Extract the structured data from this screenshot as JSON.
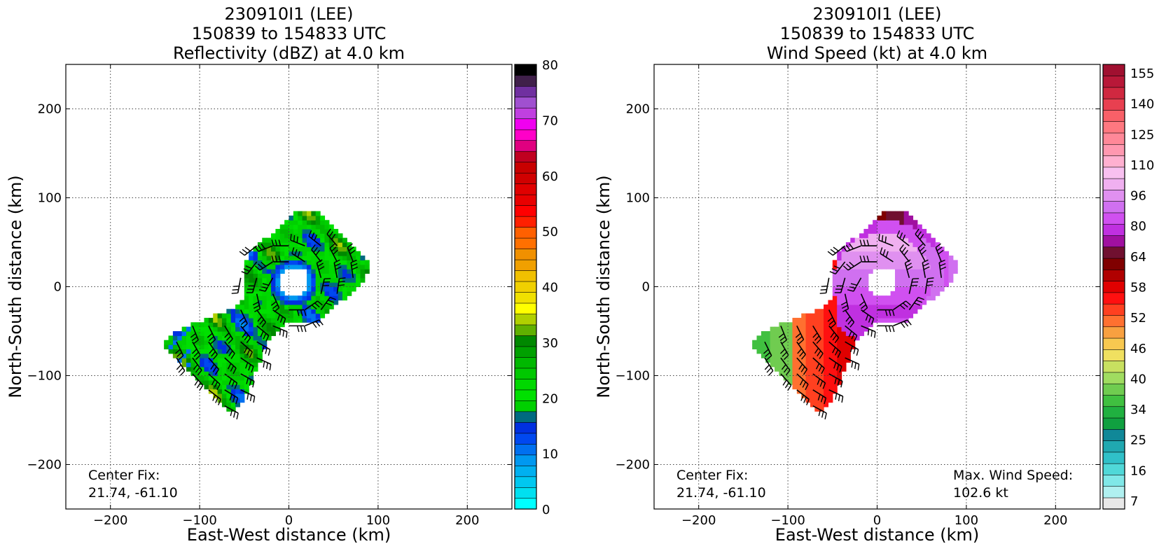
{
  "chart_data": [
    {
      "type": "heatmap",
      "title_lines": [
        "230910I1 (LEE)",
        "150839 to 154833 UTC",
        "Reflectivity (dBZ) at 4.0 km"
      ],
      "xlabel": "East-West distance (km)",
      "ylabel": "North-South distance (km)",
      "xlim": [
        -250,
        250
      ],
      "ylim": [
        -250,
        250
      ],
      "xticks": [
        -200,
        -100,
        0,
        100,
        200
      ],
      "yticks": [
        -200,
        -100,
        0,
        100,
        200
      ],
      "grid": true,
      "annotations": [
        {
          "lines": [
            "Center Fix:",
            "21.74, -61.10"
          ],
          "position": "bottom-left"
        }
      ],
      "colorbar": {
        "min": 0,
        "max": 80,
        "tick_values": [
          0,
          10,
          20,
          30,
          40,
          50,
          60,
          70,
          80
        ],
        "colors": [
          "#00ffff",
          "#00e0f0",
          "#00c8f0",
          "#00b0f0",
          "#0098f0",
          "#0070f0",
          "#0048f0",
          "#0030e0",
          "#006a80",
          "#00d000",
          "#00e000",
          "#00d800",
          "#00c800",
          "#00b800",
          "#00a000",
          "#008800",
          "#60b000",
          "#b0d000",
          "#ffff00",
          "#f0e000",
          "#f0d000",
          "#f0c000",
          "#f0a000",
          "#f09000",
          "#ff7000",
          "#ff6000",
          "#ff2000",
          "#ff0000",
          "#e80000",
          "#e00000",
          "#d00000",
          "#c80000",
          "#c00020",
          "#e00080",
          "#ff00c8",
          "#f000f0",
          "#c040e0",
          "#a050d0",
          "#7030a0",
          "#40204a",
          "#000000"
        ]
      },
      "barbs": true,
      "barb_color": "#000000"
    },
    {
      "type": "heatmap",
      "title_lines": [
        "230910I1 (LEE)",
        "150839 to 154833 UTC",
        "Wind Speed (kt) at 4.0 km"
      ],
      "xlabel": "East-West distance (km)",
      "ylabel": "North-South distance (km)",
      "xlim": [
        -250,
        250
      ],
      "ylim": [
        -250,
        250
      ],
      "xticks": [
        -200,
        -100,
        0,
        100,
        200
      ],
      "yticks": [
        -200,
        -100,
        0,
        100,
        200
      ],
      "grid": true,
      "annotations": [
        {
          "lines": [
            "Center Fix:",
            "21.74, -61.10"
          ],
          "position": "bottom-left"
        },
        {
          "lines": [
            "Max. Wind Speed:",
            "102.6 kt"
          ],
          "position": "bottom-right"
        }
      ],
      "max_wind_speed_kt": 102.6,
      "colorbar": {
        "tick_labels": [
          "7",
          "16",
          "25",
          "34",
          "40",
          "46",
          "52",
          "58",
          "64",
          "80",
          "96",
          "110",
          "125",
          "140",
          "155"
        ],
        "colors": [
          "#e8e8e8",
          "#b0f0f0",
          "#80e8e8",
          "#50d8d8",
          "#30c0c8",
          "#20a8b0",
          "#108898",
          "#10a040",
          "#20b040",
          "#40c040",
          "#70cc50",
          "#a0dc60",
          "#c8e060",
          "#f0e060",
          "#f8c850",
          "#f8a040",
          "#ff7030",
          "#ff4020",
          "#ff1010",
          "#e00000",
          "#b00000",
          "#800000",
          "#701030",
          "#a010a0",
          "#c030e0",
          "#d050f0",
          "#d070f0",
          "#e090f0",
          "#f0b0f0",
          "#f8c0f0",
          "#ffb0d0",
          "#ff98b0",
          "#ff8898",
          "#ff7880",
          "#f86068",
          "#e84050",
          "#d02840",
          "#b81838",
          "#a01030"
        ]
      },
      "barbs": true,
      "barb_color": "#000000"
    }
  ]
}
